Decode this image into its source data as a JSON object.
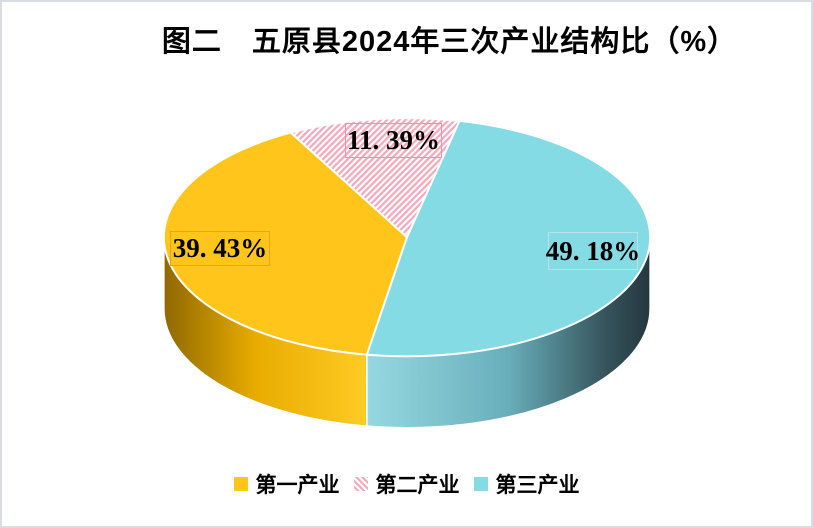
{
  "page": {
    "background": "#FFFFFF",
    "border_color": "#D8DDE3"
  },
  "chart_data": {
    "type": "pie",
    "style": "3d",
    "title": "图二　五原县2024年三次产业结构比（%）",
    "legend_position": "bottom",
    "start_angle_deg": 189.5,
    "rotation": "clockwise",
    "total": 100,
    "series": [
      {
        "name": "第一产业",
        "value": 39.43,
        "data_label": "39. 43%",
        "fill": "solid",
        "color": "#FFC51B",
        "side_colors": [
          "#8F6800",
          "#E8AC00",
          "#FFCB25"
        ],
        "label_box_border": "#E4A61B"
      },
      {
        "name": "第二产业",
        "value": 11.39,
        "data_label": "11. 39%",
        "fill": "diagonal-stripe-pattern",
        "color": "#F5A9BD",
        "pattern_bg": "#FFFFFF",
        "label_box_border": "#F48FA8"
      },
      {
        "name": "第三产业",
        "value": 49.18,
        "data_label": "49. 18%",
        "fill": "solid",
        "color": "#85DBE4",
        "side_colors": [
          "#95D8E0",
          "#68AEBA",
          "#35525A",
          "#24383E"
        ],
        "label_box_border": "#B9E2E8"
      }
    ]
  }
}
